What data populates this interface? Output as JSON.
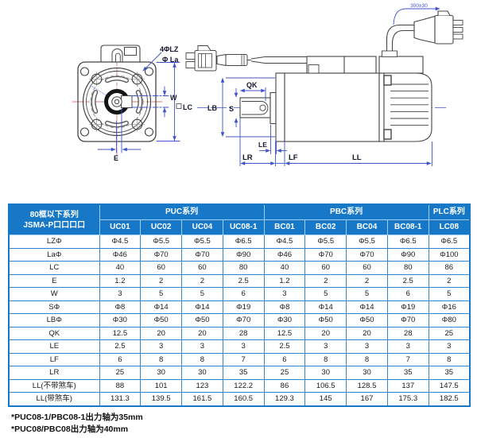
{
  "drawing": {
    "front": {
      "label_holes": "4ΦLZ",
      "label_bolt_circle": "Φ La",
      "label_key_width": "W",
      "label_frame_size": "LC",
      "label_key_offset": "E"
    },
    "side": {
      "label_key_length": "QK",
      "label_pilot_dia": "LB",
      "label_shaft_dia": "S",
      "label_pilot_len": "LE",
      "label_shaft_len": "LR",
      "label_flange_thk": "LF",
      "label_body_len": "LL",
      "label_cable_len": "300±30"
    }
  },
  "table": {
    "corner_header": [
      "80框以下系列",
      "JSMA-P口口口口"
    ],
    "groups": [
      {
        "label": "PUC系列",
        "span": 4
      },
      {
        "label": "PBC系列",
        "span": 4
      },
      {
        "label": "PLC系列",
        "span": 1
      }
    ],
    "columns": [
      "UC01",
      "UC02",
      "UC04",
      "UC08-1",
      "BC01",
      "BC02",
      "BC04",
      "BC08-1",
      "LC08"
    ],
    "rows": [
      {
        "label": "LZΦ",
        "values": [
          "Φ4.5",
          "Φ5.5",
          "Φ5.5",
          "Φ6.5",
          "Φ4.5",
          "Φ5.5",
          "Φ5.5",
          "Φ6.5",
          "Φ6.5"
        ]
      },
      {
        "label": "LaΦ",
        "values": [
          "Φ46",
          "Φ70",
          "Φ70",
          "Φ90",
          "Φ46",
          "Φ70",
          "Φ70",
          "Φ90",
          "Φ100"
        ]
      },
      {
        "label": "LC",
        "values": [
          "40",
          "60",
          "60",
          "80",
          "40",
          "60",
          "60",
          "80",
          "86"
        ]
      },
      {
        "label": "E",
        "values": [
          "1.2",
          "2",
          "2",
          "2.5",
          "1.2",
          "2",
          "2",
          "2.5",
          "2"
        ]
      },
      {
        "label": "W",
        "values": [
          "3",
          "5",
          "5",
          "6",
          "3",
          "5",
          "5",
          "6",
          "5"
        ]
      },
      {
        "label": "SΦ",
        "values": [
          "Φ8",
          "Φ14",
          "Φ14",
          "Φ19",
          "Φ8",
          "Φ14",
          "Φ14",
          "Φ19",
          "Φ16"
        ]
      },
      {
        "label": "LBΦ",
        "values": [
          "Φ30",
          "Φ50",
          "Φ50",
          "Φ70",
          "Φ30",
          "Φ50",
          "Φ50",
          "Φ70",
          "Φ80"
        ]
      },
      {
        "label": "QK",
        "values": [
          "12.5",
          "20",
          "20",
          "28",
          "12.5",
          "20",
          "20",
          "28",
          "25"
        ]
      },
      {
        "label": "LE",
        "values": [
          "2.5",
          "3",
          "3",
          "3",
          "2.5",
          "3",
          "3",
          "3",
          "3"
        ]
      },
      {
        "label": "LF",
        "values": [
          "6",
          "8",
          "8",
          "7",
          "6",
          "8",
          "8",
          "7",
          "8"
        ]
      },
      {
        "label": "LR",
        "values": [
          "25",
          "30",
          "30",
          "35",
          "25",
          "30",
          "30",
          "35",
          "35"
        ]
      },
      {
        "label": "LL(不带煞车)",
        "values": [
          "88",
          "101",
          "123",
          "122.2",
          "86",
          "106.5",
          "128.5",
          "137",
          "147.5"
        ]
      },
      {
        "label": "LL(带煞车)",
        "values": [
          "131.3",
          "139.5",
          "161.5",
          "160.5",
          "129.3",
          "145",
          "167",
          "175.3",
          "182.5"
        ]
      }
    ]
  },
  "notes": [
    "*PUC08-1/PBC08-1出力轴为35mm",
    "*PUC08/PBC08出力轴为40mm"
  ],
  "colors": {
    "table_header_bg": "#1778c8",
    "table_border": "#2f85cf",
    "dimension_blue": "#4053c8",
    "centerline_red": "#d97b7b",
    "line": "#444444"
  }
}
